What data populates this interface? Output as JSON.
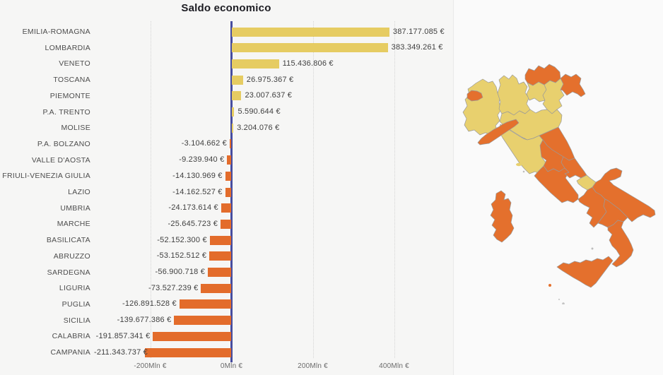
{
  "chart_data": {
    "type": "bar",
    "orientation": "horizontal",
    "title": "Saldo economico",
    "unit": "€",
    "xlabel": "",
    "ylabel": "",
    "xlim_mln": [
      -240,
      440
    ],
    "x_ticks": [
      {
        "label": "-200Mln €",
        "mln": -200
      },
      {
        "label": "0Mln €",
        "mln": 0
      },
      {
        "label": "200Mln €",
        "mln": 200
      },
      {
        "label": "400Mln €",
        "mln": 400
      }
    ],
    "items": [
      {
        "region": "EMILIA-ROMAGNA",
        "label": "387.177.085 €",
        "mln": 387.177085
      },
      {
        "region": "LOMBARDIA",
        "label": "383.349.261 €",
        "mln": 383.349261
      },
      {
        "region": "VENETO",
        "label": "115.436.806 €",
        "mln": 115.436806
      },
      {
        "region": "TOSCANA",
        "label": "26.975.367 €",
        "mln": 26.975367
      },
      {
        "region": "PIEMONTE",
        "label": "23.007.637 €",
        "mln": 23.007637
      },
      {
        "region": "P.A. TRENTO",
        "label": "5.590.644 €",
        "mln": 5.590644
      },
      {
        "region": "MOLISE",
        "label": "3.204.076 €",
        "mln": 3.204076
      },
      {
        "region": "P.A. BOLZANO",
        "label": "-3.104.662 €",
        "mln": -3.104662
      },
      {
        "region": "VALLE D'AOSTA",
        "label": "-9.239.940 €",
        "mln": -9.23994
      },
      {
        "region": "FRIULI-VENEZIA GIULIA",
        "label": "-14.130.969 €",
        "mln": -14.130969
      },
      {
        "region": "LAZIO",
        "label": "-14.162.527 €",
        "mln": -14.162527
      },
      {
        "region": "UMBRIA",
        "label": "-24.173.614 €",
        "mln": -24.173614
      },
      {
        "region": "MARCHE",
        "label": "-25.645.723 €",
        "mln": -25.645723
      },
      {
        "region": "BASILICATA",
        "label": "-52.152.300 €",
        "mln": -52.1523
      },
      {
        "region": "ABRUZZO",
        "label": "-53.152.512 €",
        "mln": -53.152512
      },
      {
        "region": "SARDEGNA",
        "label": "-56.900.718 €",
        "mln": -56.900718
      },
      {
        "region": "LIGURIA",
        "label": "-73.527.239 €",
        "mln": -73.527239
      },
      {
        "region": "PUGLIA",
        "label": "-126.891.528 €",
        "mln": -126.891528
      },
      {
        "region": "SICILIA",
        "label": "-139.677.386 €",
        "mln": -139.677386
      },
      {
        "region": "CALABRIA",
        "label": "-191.857.341 €",
        "mln": -191.857341
      },
      {
        "region": "CAMPANIA",
        "label": "-211.343.737 €",
        "mln": -211.343737
      }
    ]
  },
  "map": {
    "name": "italy-regions-choropleth",
    "regions": [
      {
        "id": "piemonte",
        "name": "PIEMONTE",
        "sentiment": "positive"
      },
      {
        "id": "valle-daosta",
        "name": "VALLE D'AOSTA",
        "sentiment": "negative"
      },
      {
        "id": "lombardia",
        "name": "LOMBARDIA",
        "sentiment": "positive"
      },
      {
        "id": "pa-bolzano",
        "name": "P.A. BOLZANO",
        "sentiment": "negative"
      },
      {
        "id": "pa-trento",
        "name": "P.A. TRENTO",
        "sentiment": "positive"
      },
      {
        "id": "veneto",
        "name": "VENETO",
        "sentiment": "positive"
      },
      {
        "id": "friuli-venezia-giulia",
        "name": "FRIULI-VENEZIA GIULIA",
        "sentiment": "negative"
      },
      {
        "id": "liguria",
        "name": "LIGURIA",
        "sentiment": "negative"
      },
      {
        "id": "emilia-romagna",
        "name": "EMILIA-ROMAGNA",
        "sentiment": "positive"
      },
      {
        "id": "toscana",
        "name": "TOSCANA",
        "sentiment": "positive"
      },
      {
        "id": "marche",
        "name": "MARCHE",
        "sentiment": "negative"
      },
      {
        "id": "umbria",
        "name": "UMBRIA",
        "sentiment": "negative"
      },
      {
        "id": "lazio",
        "name": "LAZIO",
        "sentiment": "negative"
      },
      {
        "id": "abruzzo",
        "name": "ABRUZZO",
        "sentiment": "negative"
      },
      {
        "id": "molise",
        "name": "MOLISE",
        "sentiment": "positive"
      },
      {
        "id": "campania",
        "name": "CAMPANIA",
        "sentiment": "negative"
      },
      {
        "id": "puglia",
        "name": "PUGLIA",
        "sentiment": "negative"
      },
      {
        "id": "basilicata",
        "name": "BASILICATA",
        "sentiment": "negative"
      },
      {
        "id": "calabria",
        "name": "CALABRIA",
        "sentiment": "negative"
      },
      {
        "id": "sicilia",
        "name": "SICILIA",
        "sentiment": "negative"
      },
      {
        "id": "sardegna",
        "name": "SARDEGNA",
        "sentiment": "negative"
      }
    ]
  },
  "colors": {
    "positive_bar": "#e6cc62",
    "negative_bar": "#e36c2b",
    "map_positive": "#e8d06e",
    "map_negative": "#e4702d",
    "axis": "#474d9f",
    "grid": "#d4d4d4",
    "title_text": "#1c1c22",
    "label_text": "#4d4d4d",
    "value_text": "#404040",
    "tick_text": "#6b6b6b"
  }
}
